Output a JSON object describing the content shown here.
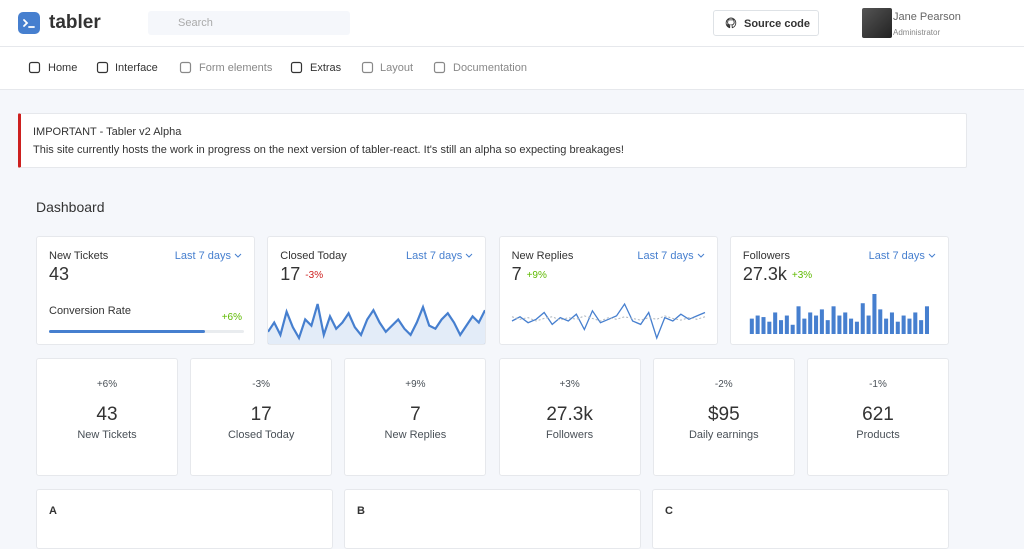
{
  "header": {
    "brand": "tabler",
    "search_placeholder": "Search",
    "button": "Source code",
    "user": {
      "name": "Jane Pearson",
      "role": "Administrator"
    }
  },
  "nav": {
    "items": [
      "Home",
      "Interface",
      "Form elements",
      "Extras",
      "Layout",
      "Documentation"
    ]
  },
  "alert": {
    "title": "IMPORTANT - Tabler v2 Alpha",
    "text": "This site currently hosts the work in progress on the next version of tabler-react. It's still an alpha so expecting breakages!"
  },
  "page_title": "Dashboard",
  "cards": [
    {
      "title": "New Tickets",
      "period": "Last 7 days",
      "value": "43",
      "progress_label": "Conversion Rate",
      "change": "+6%",
      "progress": 80
    },
    {
      "title": "Closed Today",
      "period": "Last 7 days",
      "value": "17",
      "change": "-3%",
      "chart": {
        "type": "area",
        "values": [
          32,
          38,
          30,
          45,
          35,
          28,
          40,
          36,
          50,
          30,
          42,
          34,
          38,
          44,
          35,
          30,
          40,
          46,
          38,
          32,
          36,
          40,
          34,
          30,
          38,
          48,
          36,
          34,
          40,
          44,
          38,
          30,
          36,
          42,
          38,
          46
        ]
      }
    },
    {
      "title": "New Replies",
      "period": "Last 7 days",
      "value": "7",
      "change": "+9%",
      "chart": {
        "type": "line",
        "series": [
          {
            "color": "#467fcf",
            "values": [
              40,
              45,
              38,
              42,
              50,
              36,
              44,
              40,
              48,
              30,
              52,
              38,
              42,
              46,
              60,
              40,
              36,
              50,
              20,
              44,
              40,
              48,
              42,
              46,
              50
            ]
          },
          {
            "color": "#adb5bd",
            "values": [
              45,
              42,
              44,
              40,
              43,
              45,
              41,
              44,
              42,
              46,
              43,
              40,
              44,
              42,
              45,
              43,
              41,
              44,
              42,
              46,
              43,
              41,
              44,
              42,
              45
            ]
          }
        ]
      }
    },
    {
      "title": "Followers",
      "period": "Last 7 days",
      "value": "27.3k",
      "change": "+3%",
      "chart": {
        "type": "bar",
        "values": [
          10,
          12,
          11,
          8,
          14,
          9,
          12,
          6,
          18,
          10,
          14,
          12,
          16,
          9,
          18,
          12,
          14,
          10,
          8,
          20,
          12,
          26,
          16,
          10,
          14,
          8,
          12,
          10,
          14,
          9,
          18
        ]
      }
    }
  ],
  "stats": [
    {
      "change": "+6%",
      "value": "43",
      "label": "New Tickets"
    },
    {
      "change": "-3%",
      "value": "17",
      "label": "Closed Today"
    },
    {
      "change": "+9%",
      "value": "7",
      "label": "New Replies"
    },
    {
      "change": "+3%",
      "value": "27.3k",
      "label": "Followers"
    },
    {
      "change": "-2%",
      "value": "$95",
      "label": "Daily earnings"
    },
    {
      "change": "-1%",
      "value": "621",
      "label": "Products"
    }
  ],
  "panels": [
    "A",
    "B",
    "C"
  ]
}
